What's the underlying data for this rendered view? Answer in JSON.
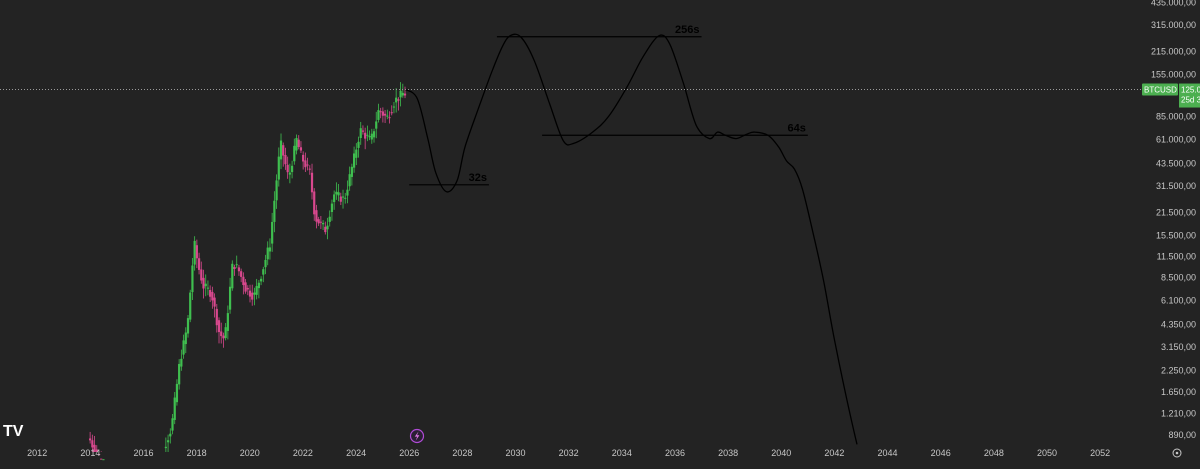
{
  "chart_data": {
    "type": "line",
    "symbol": "BTCUSD",
    "price_label": "125.022,70",
    "countdown_label": "25d 3h",
    "x_ticks": [
      "2012",
      "2014",
      "2016",
      "2018",
      "2020",
      "2022",
      "2024",
      "2026",
      "2028",
      "2030",
      "2032",
      "2034",
      "2036",
      "2038",
      "2040",
      "2042",
      "2044",
      "2046",
      "2048",
      "2050",
      "2052"
    ],
    "y_ticks": [
      "435.000,00",
      "315.000,00",
      "215.000,00",
      "155.000,00",
      "85.000,00",
      "61.000,00",
      "43.500,00",
      "31.500,00",
      "21.500,00",
      "15.500,00",
      "11.500,00",
      "8.500,00",
      "6.100,00",
      "4.350,00",
      "3.150,00",
      "2.250,00",
      "1.650,00",
      "1.210,00",
      "890,00"
    ],
    "y_scale": "log",
    "ylim": [
      700,
      450000
    ],
    "xlim": [
      2010.6,
      2053.5
    ],
    "current_price": 125022.7,
    "price_candles_monthly_close": [
      {
        "x": 2014.0,
        "v": 850
      },
      {
        "x": 2014.4,
        "v": 620
      },
      {
        "x": 2016.8,
        "v": 740
      },
      {
        "x": 2017.1,
        "v": 1000
      },
      {
        "x": 2017.4,
        "v": 2500
      },
      {
        "x": 2017.7,
        "v": 4300
      },
      {
        "x": 2017.95,
        "v": 14000
      },
      {
        "x": 2018.1,
        "v": 10000
      },
      {
        "x": 2018.3,
        "v": 7500
      },
      {
        "x": 2018.6,
        "v": 6800
      },
      {
        "x": 2018.9,
        "v": 3800
      },
      {
        "x": 2019.1,
        "v": 3500
      },
      {
        "x": 2019.4,
        "v": 10500
      },
      {
        "x": 2019.6,
        "v": 9600
      },
      {
        "x": 2019.9,
        "v": 7200
      },
      {
        "x": 2020.2,
        "v": 6500
      },
      {
        "x": 2020.5,
        "v": 9200
      },
      {
        "x": 2020.8,
        "v": 13800
      },
      {
        "x": 2021.0,
        "v": 29000
      },
      {
        "x": 2021.2,
        "v": 58000
      },
      {
        "x": 2021.5,
        "v": 35000
      },
      {
        "x": 2021.8,
        "v": 61000
      },
      {
        "x": 2022.0,
        "v": 47000
      },
      {
        "x": 2022.3,
        "v": 38000
      },
      {
        "x": 2022.5,
        "v": 20000
      },
      {
        "x": 2022.9,
        "v": 16800
      },
      {
        "x": 2023.2,
        "v": 28000
      },
      {
        "x": 2023.6,
        "v": 26000
      },
      {
        "x": 2023.9,
        "v": 42000
      },
      {
        "x": 2024.2,
        "v": 70000
      },
      {
        "x": 2024.6,
        "v": 60000
      },
      {
        "x": 2024.9,
        "v": 94000
      },
      {
        "x": 2025.2,
        "v": 83000
      },
      {
        "x": 2025.5,
        "v": 107000
      },
      {
        "x": 2025.8,
        "v": 118000
      }
    ],
    "projection_path": [
      [
        2025.85,
        125000
      ],
      [
        2026.3,
        110000
      ],
      [
        2026.7,
        62000
      ],
      [
        2027.0,
        38000
      ],
      [
        2027.4,
        29000
      ],
      [
        2027.8,
        34000
      ],
      [
        2028.1,
        55000
      ],
      [
        2028.6,
        95000
      ],
      [
        2029.1,
        160000
      ],
      [
        2029.5,
        230000
      ],
      [
        2029.8,
        270000
      ],
      [
        2030.2,
        265000
      ],
      [
        2030.7,
        190000
      ],
      [
        2031.3,
        100000
      ],
      [
        2031.8,
        60000
      ],
      [
        2032.2,
        58000
      ],
      [
        2032.9,
        68000
      ],
      [
        2033.5,
        85000
      ],
      [
        2034.2,
        130000
      ],
      [
        2034.8,
        200000
      ],
      [
        2035.4,
        270000
      ],
      [
        2035.8,
        240000
      ],
      [
        2036.3,
        140000
      ],
      [
        2036.8,
        75000
      ],
      [
        2037.3,
        62000
      ],
      [
        2037.6,
        68000
      ],
      [
        2037.9,
        65000
      ],
      [
        2038.3,
        62000
      ],
      [
        2038.7,
        66000
      ],
      [
        2039.0,
        68000
      ],
      [
        2039.5,
        65000
      ],
      [
        2039.9,
        55000
      ],
      [
        2040.2,
        45000
      ],
      [
        2040.5,
        40000
      ],
      [
        2040.8,
        30000
      ],
      [
        2041.2,
        16000
      ],
      [
        2041.6,
        8000
      ],
      [
        2042.0,
        3500
      ],
      [
        2042.5,
        1400
      ],
      [
        2042.85,
        780
      ]
    ],
    "cycle_levels": [
      {
        "label": "32s",
        "x0": 2026.0,
        "x1": 2029.0,
        "y": 32000
      },
      {
        "label": "256s",
        "x0": 2029.3,
        "x1": 2037.0,
        "y": 266000
      },
      {
        "label": "64s",
        "x0": 2031.0,
        "x1": 2041.0,
        "y": 65000
      }
    ],
    "colors": {
      "background": "#232323",
      "up_candle": "#3fbf4f",
      "down_candle": "#d9488e",
      "projection": "#000000",
      "level": "#000000",
      "price_badge": "#4caf50",
      "axis_text": "#c7c7c7"
    },
    "grid": false
  }
}
